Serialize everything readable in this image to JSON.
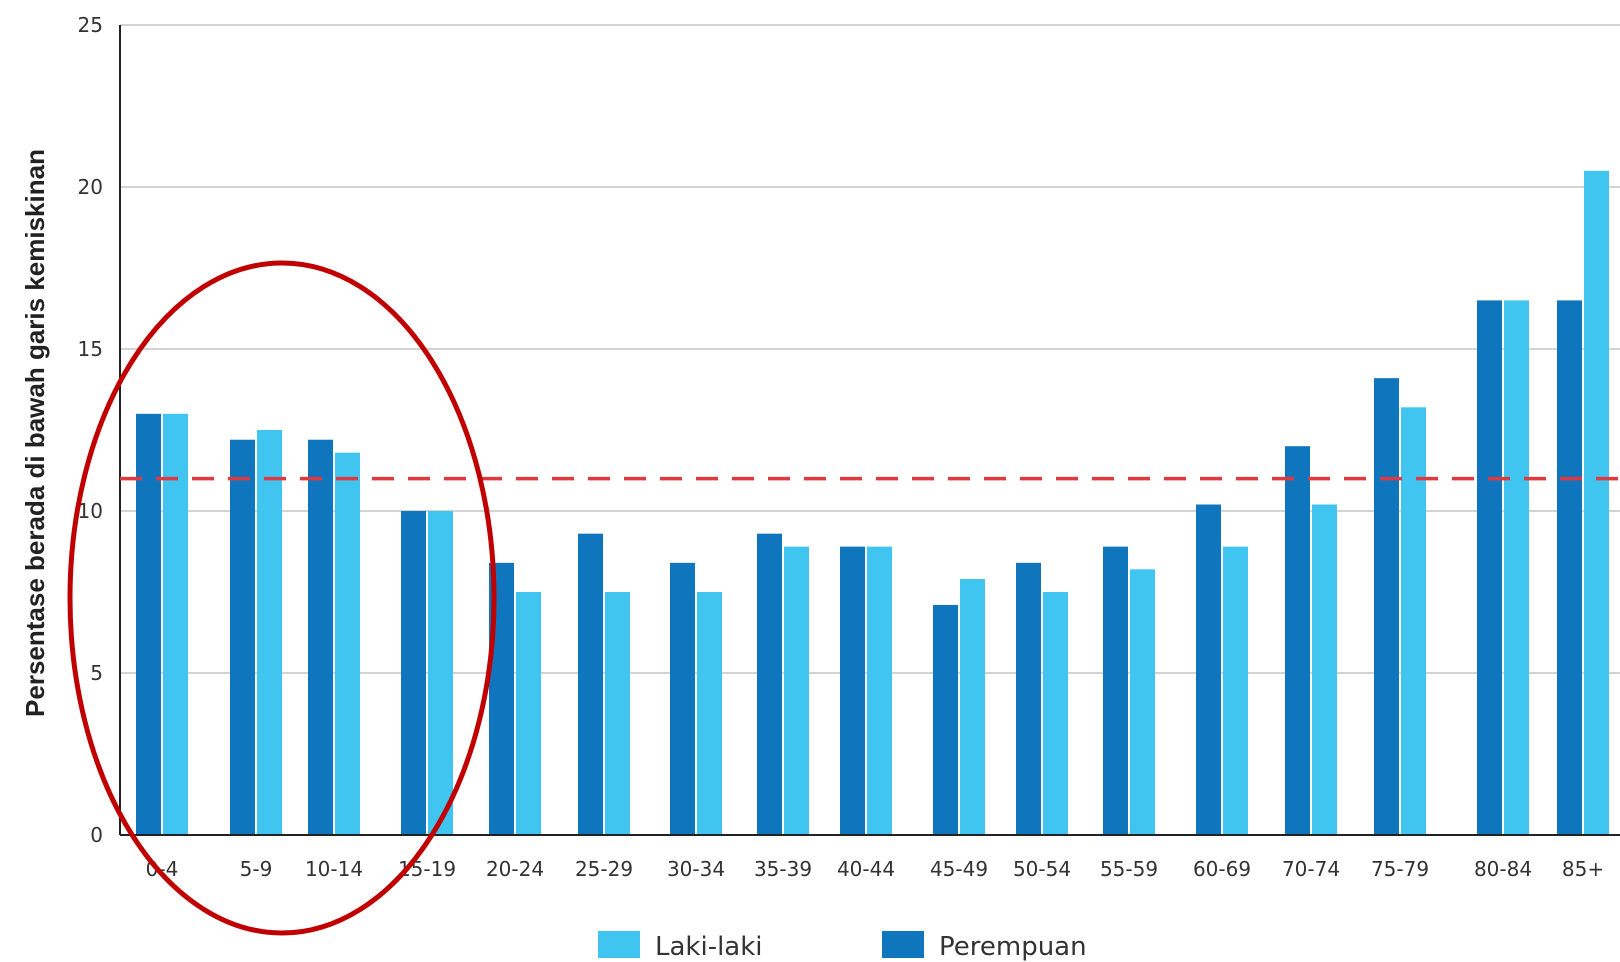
{
  "chart_data": {
    "type": "bar",
    "title": "",
    "xlabel": "",
    "ylabel": "Persentase berada di bawah garis kemiskinan",
    "ylim": [
      0,
      25
    ],
    "yticks": [
      0,
      5,
      10,
      15,
      20,
      25
    ],
    "grid": true,
    "legend_position": "bottom",
    "categories": [
      "0-4",
      "5-9",
      "10-14",
      "15-19",
      "20-24",
      "25-29",
      "30-34",
      "35-39",
      "40-44",
      "45-49",
      "50-54",
      "55-59",
      "60-69",
      "70-74",
      "75-79",
      "80-84",
      "85+"
    ],
    "series": [
      {
        "name": "Perempuan",
        "color": "#0f75bc",
        "values": [
          13.0,
          12.2,
          12.2,
          10.0,
          8.4,
          9.3,
          8.4,
          9.3,
          8.9,
          7.1,
          8.4,
          8.9,
          10.2,
          12.0,
          14.1,
          16.5,
          16.5
        ]
      },
      {
        "name": "Laki-laki",
        "color": "#40c4f0",
        "values": [
          13.0,
          12.5,
          11.8,
          10.0,
          7.5,
          7.5,
          7.5,
          8.9,
          8.9,
          7.9,
          7.5,
          8.2,
          8.9,
          10.2,
          13.2,
          16.5,
          20.5
        ]
      }
    ],
    "reference_line": {
      "value": 11.0,
      "color": "#e0383e",
      "style": "dashed"
    },
    "annotation": {
      "shape": "ellipse",
      "color": "#c00000",
      "highlights": [
        "0-4",
        "5-9",
        "10-14",
        "15-19"
      ]
    },
    "legend": [
      {
        "label": "Laki-laki",
        "color": "#40c4f0"
      },
      {
        "label": "Perempuan",
        "color": "#0f75bc"
      }
    ]
  }
}
